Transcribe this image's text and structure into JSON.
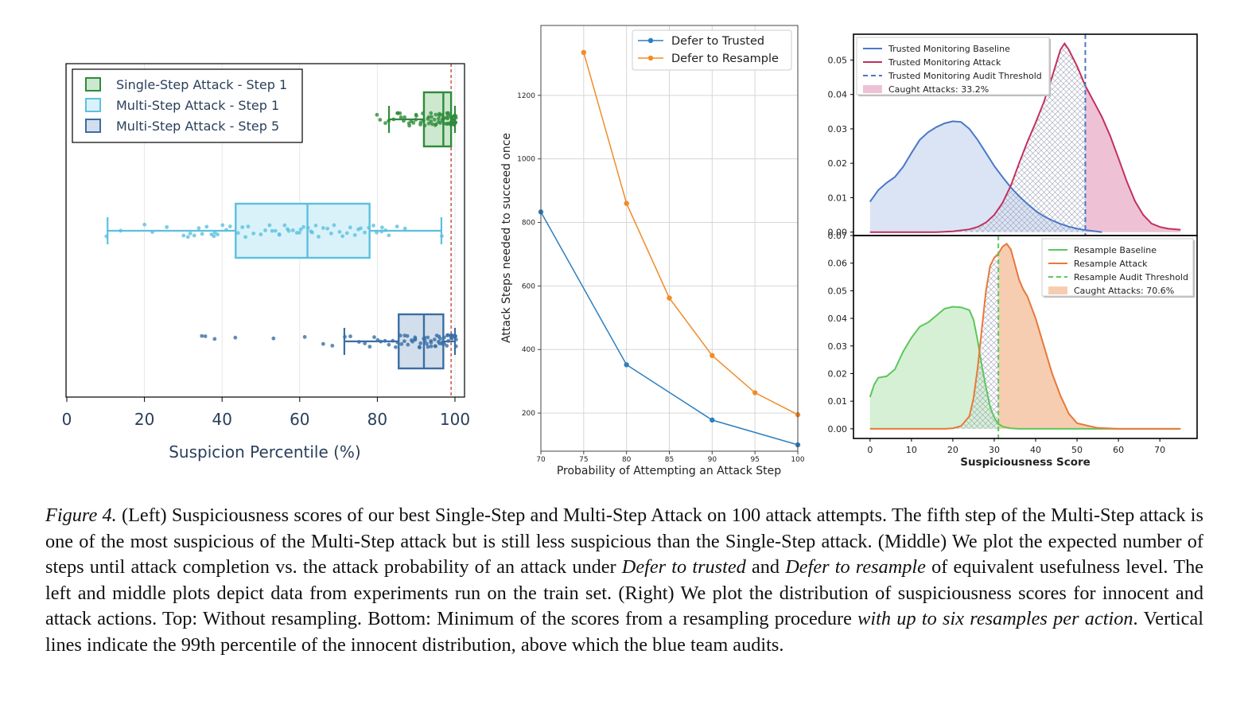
{
  "chart_data": [
    {
      "type": "box",
      "title": "",
      "xlabel": "Suspicion Percentile (%)",
      "xlim": [
        0,
        100
      ],
      "xticks": [
        0,
        20,
        40,
        60,
        80,
        100
      ],
      "threshold_x": 99,
      "legend_position": "top-left",
      "colors": {
        "threshold": "#c0392b"
      },
      "series": [
        {
          "name": "Single-Step Attack - Step 1",
          "color": "#2e8b3a",
          "fill": "#cde8cf",
          "whisker_low": 83,
          "q1": 92,
          "median": 97,
          "q3": 99,
          "whisker_high": 100,
          "points": [
            80,
            81,
            82,
            83,
            84,
            85,
            85,
            86,
            86,
            87,
            87,
            88,
            88,
            89,
            89,
            90,
            90,
            90,
            91,
            91,
            92,
            92,
            92,
            93,
            93,
            93,
            94,
            94,
            94,
            94,
            95,
            95,
            95,
            95,
            96,
            96,
            96,
            96,
            96,
            97,
            97,
            97,
            97,
            97,
            97,
            98,
            98,
            98,
            98,
            98,
            98,
            98,
            99,
            99,
            99,
            99,
            99,
            99,
            99,
            99,
            99,
            100,
            100,
            100,
            100,
            100,
            100,
            100,
            100,
            100,
            100
          ]
        },
        {
          "name": "Multi-Step Attack - Step 1",
          "color": "#5bc0de",
          "fill": "#d9f2fa",
          "whisker_low": 10.5,
          "q1": 43.5,
          "median": 62,
          "q3": 78,
          "whisker_high": 96.5,
          "points": [
            10.5,
            14,
            20,
            22,
            26,
            30,
            31,
            32,
            33,
            34,
            35,
            36,
            37,
            38,
            38,
            39,
            40,
            41,
            42,
            44,
            45,
            46,
            47,
            48,
            50,
            51,
            52,
            53,
            54,
            55,
            55,
            56,
            57,
            57,
            58,
            59,
            60,
            60,
            61,
            62,
            63,
            63,
            64,
            65,
            66,
            67,
            68,
            69,
            70,
            71,
            72,
            73,
            74,
            75,
            76,
            77,
            78,
            79,
            80,
            81,
            81,
            82,
            83,
            85,
            87,
            96.5
          ]
        },
        {
          "name": "Multi-Step Attack - Step 5",
          "color": "#3a6ea5",
          "fill": "#d3deec",
          "whisker_low": 71.5,
          "q1": 85.5,
          "median": 92,
          "q3": 97,
          "whisker_high": 100,
          "points": [
            34.5,
            35.5,
            38,
            43.5,
            53,
            61.5,
            66,
            68.5,
            71.5,
            73,
            75,
            77,
            78,
            79,
            80,
            81,
            82,
            83,
            84,
            85,
            85,
            86,
            86,
            87,
            87,
            88,
            88,
            89,
            89,
            90,
            90,
            90,
            91,
            91,
            91,
            92,
            92,
            92,
            93,
            93,
            93,
            94,
            94,
            94,
            95,
            95,
            95,
            95,
            96,
            96,
            96,
            96,
            97,
            97,
            97,
            97,
            98,
            98,
            98,
            98,
            99,
            99,
            99,
            99,
            99,
            100,
            100,
            100,
            100,
            100
          ]
        }
      ]
    },
    {
      "type": "line",
      "title": "",
      "xlabel": "Probability of Attempting an Attack Step",
      "ylabel": "Attack Steps needed to succeed once",
      "xlim": [
        70,
        100
      ],
      "ylim": [
        80,
        1420
      ],
      "xticks": [
        70,
        75,
        80,
        85,
        90,
        95,
        100
      ],
      "yticks": [
        200,
        400,
        600,
        800,
        1000,
        1200
      ],
      "grid": true,
      "legend_position": "top-right",
      "series": [
        {
          "name": "Defer to Trusted",
          "color": "#2e7fbf",
          "x": [
            70,
            80,
            90,
            100
          ],
          "y": [
            833,
            352,
            178,
            100
          ]
        },
        {
          "name": "Defer to Resample",
          "color": "#f08c2a",
          "x": [
            75,
            80,
            85,
            90,
            95,
            100
          ],
          "y": [
            1335,
            860,
            562,
            381,
            264,
            195
          ]
        }
      ]
    },
    {
      "type": "area",
      "title": "",
      "xlabel": "",
      "ylabel": "",
      "xlim": [
        -4,
        79
      ],
      "ylim": [
        -0.001,
        0.0575
      ],
      "yticks": [
        0.0,
        0.01,
        0.02,
        0.03,
        0.04,
        0.05
      ],
      "ytick_labels": [
        "0.00",
        "0.01",
        "0.02",
        "0.03",
        "0.04",
        "0.05"
      ],
      "threshold_x": 52,
      "threshold_label": "Trusted Monitoring Audit Threshold",
      "caught_label": "Caught Attacks: 33.2%",
      "legend_position": "top-left",
      "colors": {
        "baseline": "#4a78c8",
        "baseline_fill": "#dbe4f5",
        "attack": "#c2305e",
        "attack_fill": "#eec2d4",
        "threshold": "#4a78c8"
      },
      "series": [
        {
          "name": "Trusted Monitoring Baseline",
          "x": [
            0,
            2,
            4,
            6,
            8,
            10,
            12,
            14,
            16,
            18,
            20,
            22,
            24,
            26,
            28,
            30,
            32,
            34,
            36,
            38,
            40,
            42,
            44,
            46,
            48,
            50,
            52,
            54,
            56
          ],
          "y": [
            0.0088,
            0.0122,
            0.0143,
            0.016,
            0.019,
            0.023,
            0.0268,
            0.029,
            0.0305,
            0.0316,
            0.0322,
            0.032,
            0.03,
            0.0268,
            0.023,
            0.0192,
            0.016,
            0.013,
            0.0104,
            0.0082,
            0.0062,
            0.0046,
            0.0034,
            0.0024,
            0.0016,
            0.001,
            0.0006,
            0.0003,
            0.0
          ]
        },
        {
          "name": "Trusted Monitoring Attack",
          "x": [
            0,
            16,
            20,
            24,
            26,
            28,
            30,
            32,
            34,
            36,
            38,
            40,
            42,
            44,
            46,
            47,
            48,
            50,
            52,
            54,
            56,
            58,
            60,
            62,
            64,
            66,
            68,
            70,
            72,
            74,
            75
          ],
          "y": [
            0.0,
            0.0,
            0.0002,
            0.0008,
            0.0015,
            0.0028,
            0.005,
            0.0085,
            0.0135,
            0.02,
            0.0262,
            0.0318,
            0.0378,
            0.0452,
            0.053,
            0.0548,
            0.053,
            0.0482,
            0.0425,
            0.038,
            0.0335,
            0.028,
            0.0215,
            0.0148,
            0.009,
            0.005,
            0.0025,
            0.0015,
            0.001,
            0.0008,
            0.0007
          ]
        }
      ]
    },
    {
      "type": "area",
      "title": "",
      "xlabel": "Suspiciousness Score",
      "ylabel": "",
      "xlim": [
        -4,
        79
      ],
      "ylim": [
        -0.0035,
        0.07
      ],
      "xticks": [
        0,
        10,
        20,
        30,
        40,
        50,
        60,
        70
      ],
      "yticks": [
        0.0,
        0.01,
        0.02,
        0.03,
        0.04,
        0.05,
        0.06,
        0.07
      ],
      "ytick_labels": [
        "0.00",
        "0.01",
        "0.02",
        "0.03",
        "0.04",
        "0.05",
        "0.06",
        "0.07"
      ],
      "threshold_x": 31,
      "threshold_label": "Resample Audit Threshold",
      "caught_label": "Caught Attacks: 70.6%",
      "legend_position": "top-right",
      "colors": {
        "baseline": "#5cc75c",
        "baseline_fill": "#d5f0d5",
        "attack": "#e8783a",
        "attack_fill": "#f7cdb1",
        "threshold": "#5cc75c"
      },
      "series": [
        {
          "name": "Resample Baseline",
          "x": [
            0,
            1,
            2,
            4,
            6,
            8,
            10,
            12,
            14,
            16,
            18,
            20,
            22,
            24,
            25,
            26,
            27,
            28,
            29,
            30,
            31,
            32,
            34,
            36,
            40,
            75
          ],
          "y": [
            0.0115,
            0.016,
            0.0185,
            0.019,
            0.0215,
            0.028,
            0.033,
            0.037,
            0.0385,
            0.041,
            0.0435,
            0.0442,
            0.044,
            0.043,
            0.0395,
            0.032,
            0.023,
            0.015,
            0.008,
            0.004,
            0.0018,
            0.0008,
            0.0002,
            0.0,
            0.0,
            0.0
          ]
        },
        {
          "name": "Resample Attack",
          "x": [
            0,
            18,
            20,
            22,
            24,
            25,
            26,
            27,
            28,
            29,
            30,
            31,
            32,
            33,
            34,
            35,
            36,
            37,
            38,
            40,
            42,
            44,
            46,
            48,
            50,
            55,
            60,
            75
          ],
          "y": [
            0.0,
            0.0,
            0.0002,
            0.001,
            0.0045,
            0.011,
            0.022,
            0.036,
            0.05,
            0.059,
            0.062,
            0.0635,
            0.066,
            0.067,
            0.065,
            0.0595,
            0.054,
            0.0505,
            0.048,
            0.04,
            0.03,
            0.02,
            0.012,
            0.0055,
            0.002,
            0.0003,
            0.0,
            0.0
          ]
        }
      ]
    }
  ],
  "caption": {
    "label": "Figure 4.",
    "p1": " (Left) Suspiciousness scores of our best Single-Step and Multi-Step Attack on 100 attack attempts.  The fifth step of the Multi-Step attack is one of the most suspicious of the Multi-Step attack but is still less suspicious than the Single-Step attack. (Middle) We plot the expected number of steps until attack completion vs. the attack probability of an attack under ",
    "i1": "Defer to trusted",
    "p2": " and ",
    "i2": "Defer to resample",
    "p3": " of equivalent usefulness level. The left and middle plots depict data from experiments run on the train set. (Right) We plot the distribution of suspiciousness scores for innocent and attack actions. Top: Without resampling. Bottom: Minimum of the scores from a resampling procedure ",
    "i3": "with up to six resamples per action",
    "p4": ". Vertical lines indicate the 99th percentile of the innocent distribution, above which the blue team audits."
  }
}
